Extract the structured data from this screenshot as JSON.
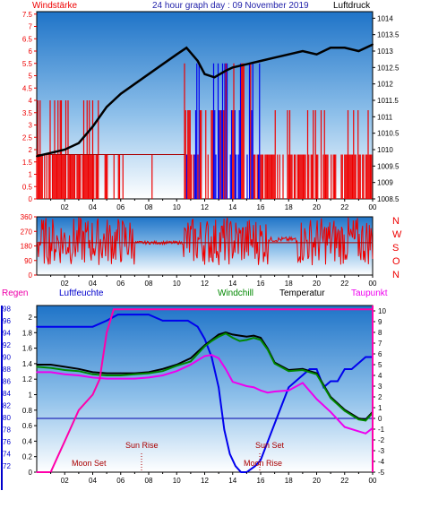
{
  "title": "24 hour graph day : 09 November 2019",
  "chart_data": [
    {
      "panel": "wind_pressure",
      "type": "line",
      "left_label": "Windstärke",
      "right_label": "Luftdruck",
      "left_ticks": [
        "0",
        "0.5",
        "1",
        "1.5",
        "2",
        "2.5",
        "3",
        "3.5",
        "4",
        "4.5",
        "5",
        "5.5",
        "6",
        "6.5",
        "7",
        "7.5"
      ],
      "right_ticks": [
        "1008.5",
        "1009",
        "1009.5",
        "1010",
        "1010.5",
        "1011",
        "1011.5",
        "1012",
        "1012.5",
        "1013",
        "1013.5",
        "1014"
      ],
      "x_ticks": [
        "02",
        "04",
        "06",
        "08",
        "10",
        "12",
        "14",
        "16",
        "18",
        "20",
        "22",
        "00"
      ],
      "ylim_left": [
        0,
        7.6
      ],
      "ylim_right": [
        1008.5,
        1014.2
      ],
      "series": [
        {
          "name": "Luftdruck",
          "color": "#000000",
          "x": [
            0,
            1,
            2,
            3,
            4,
            5,
            6,
            7,
            8,
            9,
            10,
            10.7,
            11.5,
            12,
            12.7,
            13.5,
            14,
            15,
            16,
            17,
            18,
            19,
            20,
            21,
            22,
            23,
            24
          ],
          "values": [
            1009.8,
            1009.9,
            1010.0,
            1010.2,
            1010.7,
            1011.3,
            1011.7,
            1012.0,
            1012.3,
            1012.6,
            1012.9,
            1013.1,
            1012.7,
            1012.3,
            1012.2,
            1012.4,
            1012.5,
            1012.6,
            1012.7,
            1012.8,
            1012.9,
            1013.0,
            1012.9,
            1013.1,
            1013.1,
            1013.0,
            1013.2
          ]
        }
      ]
    },
    {
      "panel": "wind_direction",
      "type": "line",
      "left_ticks": [
        "0",
        "90",
        "180",
        "270",
        "360"
      ],
      "right_labels": [
        "N",
        "W",
        "S",
        "O",
        "N"
      ],
      "x_ticks": [
        "02",
        "04",
        "06",
        "08",
        "10",
        "12",
        "14",
        "16",
        "18",
        "20",
        "22",
        "00"
      ],
      "ylim": [
        0,
        360
      ]
    },
    {
      "panel": "humidity_temperature",
      "type": "line",
      "legend": [
        "Regen",
        "Luftfeuchte",
        "Windchill",
        "Temperatur",
        "Taupunkt"
      ],
      "left_ticks_rain": [
        "0",
        "0.2",
        "0.4",
        "0.6",
        "0.8",
        "1",
        "1.2",
        "1.4",
        "1.6",
        "1.8",
        "2"
      ],
      "left_ticks_humidity": [
        "72",
        "74",
        "76",
        "78",
        "80",
        "82",
        "84",
        "86",
        "88",
        "90",
        "92",
        "94",
        "96",
        "98"
      ],
      "right_ticks": [
        "-5",
        "-4",
        "-3",
        "-2",
        "-1",
        "0",
        "1",
        "2",
        "3",
        "4",
        "5",
        "6",
        "7",
        "8",
        "9",
        "10"
      ],
      "x_ticks": [
        "02",
        "04",
        "06",
        "08",
        "10",
        "12",
        "14",
        "16",
        "18",
        "20",
        "22",
        "00"
      ],
      "ylim_temperature": [
        -5,
        10.5
      ],
      "annotations": [
        "Moon Set",
        "Sun Rise",
        "Sun Set",
        "Moon Rise"
      ],
      "series": [
        {
          "name": "Luftfeuchte",
          "color": "#0000ee",
          "x": [
            0,
            1,
            2,
            3,
            4,
            5,
            5.8,
            6.5,
            7,
            8,
            9,
            10,
            10.8,
            11.5,
            12,
            12.5,
            13,
            13.4,
            13.8,
            14.2,
            14.6,
            15,
            15.6,
            16,
            16.5,
            17,
            17.5,
            18,
            19,
            19.5,
            20,
            20.5,
            21,
            21.5,
            22,
            22.5,
            23,
            23.5,
            24
          ],
          "values": [
            95,
            95,
            95,
            95,
            95,
            96,
            97,
            97,
            97,
            97,
            96,
            96,
            96,
            95,
            93,
            90,
            85,
            78,
            74,
            72,
            71,
            71,
            72,
            73,
            76,
            79,
            82,
            85,
            87,
            88,
            88,
            85,
            86,
            86,
            88,
            88,
            89,
            90,
            90
          ]
        },
        {
          "name": "Temperatur",
          "color": "#000000",
          "x": [
            0,
            1,
            2,
            3,
            4,
            5,
            6,
            7,
            8,
            9,
            10,
            11,
            11.5,
            12,
            12.5,
            13,
            13.5,
            14,
            14.5,
            15,
            15.5,
            16,
            16.5,
            17,
            18,
            19,
            20,
            21,
            22,
            23,
            23.5,
            24
          ],
          "values": [
            5,
            5,
            4.8,
            4.6,
            4.3,
            4.2,
            4.2,
            4.2,
            4.3,
            4.6,
            5,
            5.6,
            6.2,
            6.8,
            7.3,
            7.8,
            8,
            7.8,
            7.7,
            7.6,
            7.7,
            7.5,
            6.5,
            5.2,
            4.5,
            4.6,
            4.2,
            2,
            0.8,
            0,
            -0.1,
            0.6
          ]
        },
        {
          "name": "Windchill",
          "color": "#008800",
          "x": [
            0,
            1,
            2,
            3,
            4,
            5,
            6,
            7,
            8,
            9,
            10,
            11,
            11.5,
            12,
            12.5,
            13,
            13.5,
            14,
            14.5,
            15,
            15.5,
            16,
            16.5,
            17,
            18,
            19,
            20,
            21,
            22,
            23,
            23.5,
            24
          ],
          "values": [
            4.8,
            4.7,
            4.5,
            4.4,
            4.1,
            4,
            4,
            4.1,
            4.2,
            4.4,
            4.9,
            5.3,
            6,
            6.7,
            7.2,
            7.6,
            7.9,
            7.5,
            7.2,
            7.3,
            7.5,
            7.3,
            6.4,
            5.1,
            4.4,
            4.5,
            4.1,
            1.9,
            0.7,
            -0.1,
            -0.2,
            0.5
          ]
        },
        {
          "name": "Taupunkt",
          "color": "#ee00ee",
          "x": [
            0,
            1,
            2,
            3,
            4,
            5,
            6,
            7,
            8,
            9,
            10,
            11,
            11.5,
            12,
            12.5,
            13,
            13.5,
            14,
            14.5,
            15,
            15.5,
            16,
            16.5,
            17,
            18,
            19,
            20,
            21,
            22,
            23,
            23.5,
            24
          ],
          "values": [
            4.3,
            4.3,
            4.1,
            4,
            3.8,
            3.7,
            3.7,
            3.7,
            3.8,
            4,
            4.4,
            5,
            5.4,
            5.8,
            5.9,
            5.6,
            4.6,
            3.4,
            3.2,
            3,
            2.9,
            2.6,
            2.4,
            2.5,
            2.6,
            3.3,
            1.8,
            0.6,
            -0.8,
            -1.2,
            -1.4,
            -0.9
          ]
        },
        {
          "name": "Regen",
          "color": "#ff00aa",
          "x": [
            0,
            1,
            1.5,
            2,
            2.5,
            3,
            4,
            4.5,
            5,
            5.5,
            6,
            7,
            8,
            9,
            10,
            11,
            12,
            13,
            14,
            15,
            16,
            17,
            18,
            19,
            20,
            21,
            22,
            23,
            24
          ],
          "values": [
            0,
            0,
            0.2,
            0.4,
            0.6,
            0.8,
            1.0,
            1.2,
            1.8,
            2.1,
            2.1,
            2.1,
            2.1,
            2.1,
            2.1,
            2.1,
            2.1,
            2.1,
            2.1,
            2.1,
            2.1,
            2.1,
            2.1,
            2.1,
            2.1,
            2.1,
            2.1,
            2.1,
            2.1
          ]
        }
      ]
    }
  ]
}
